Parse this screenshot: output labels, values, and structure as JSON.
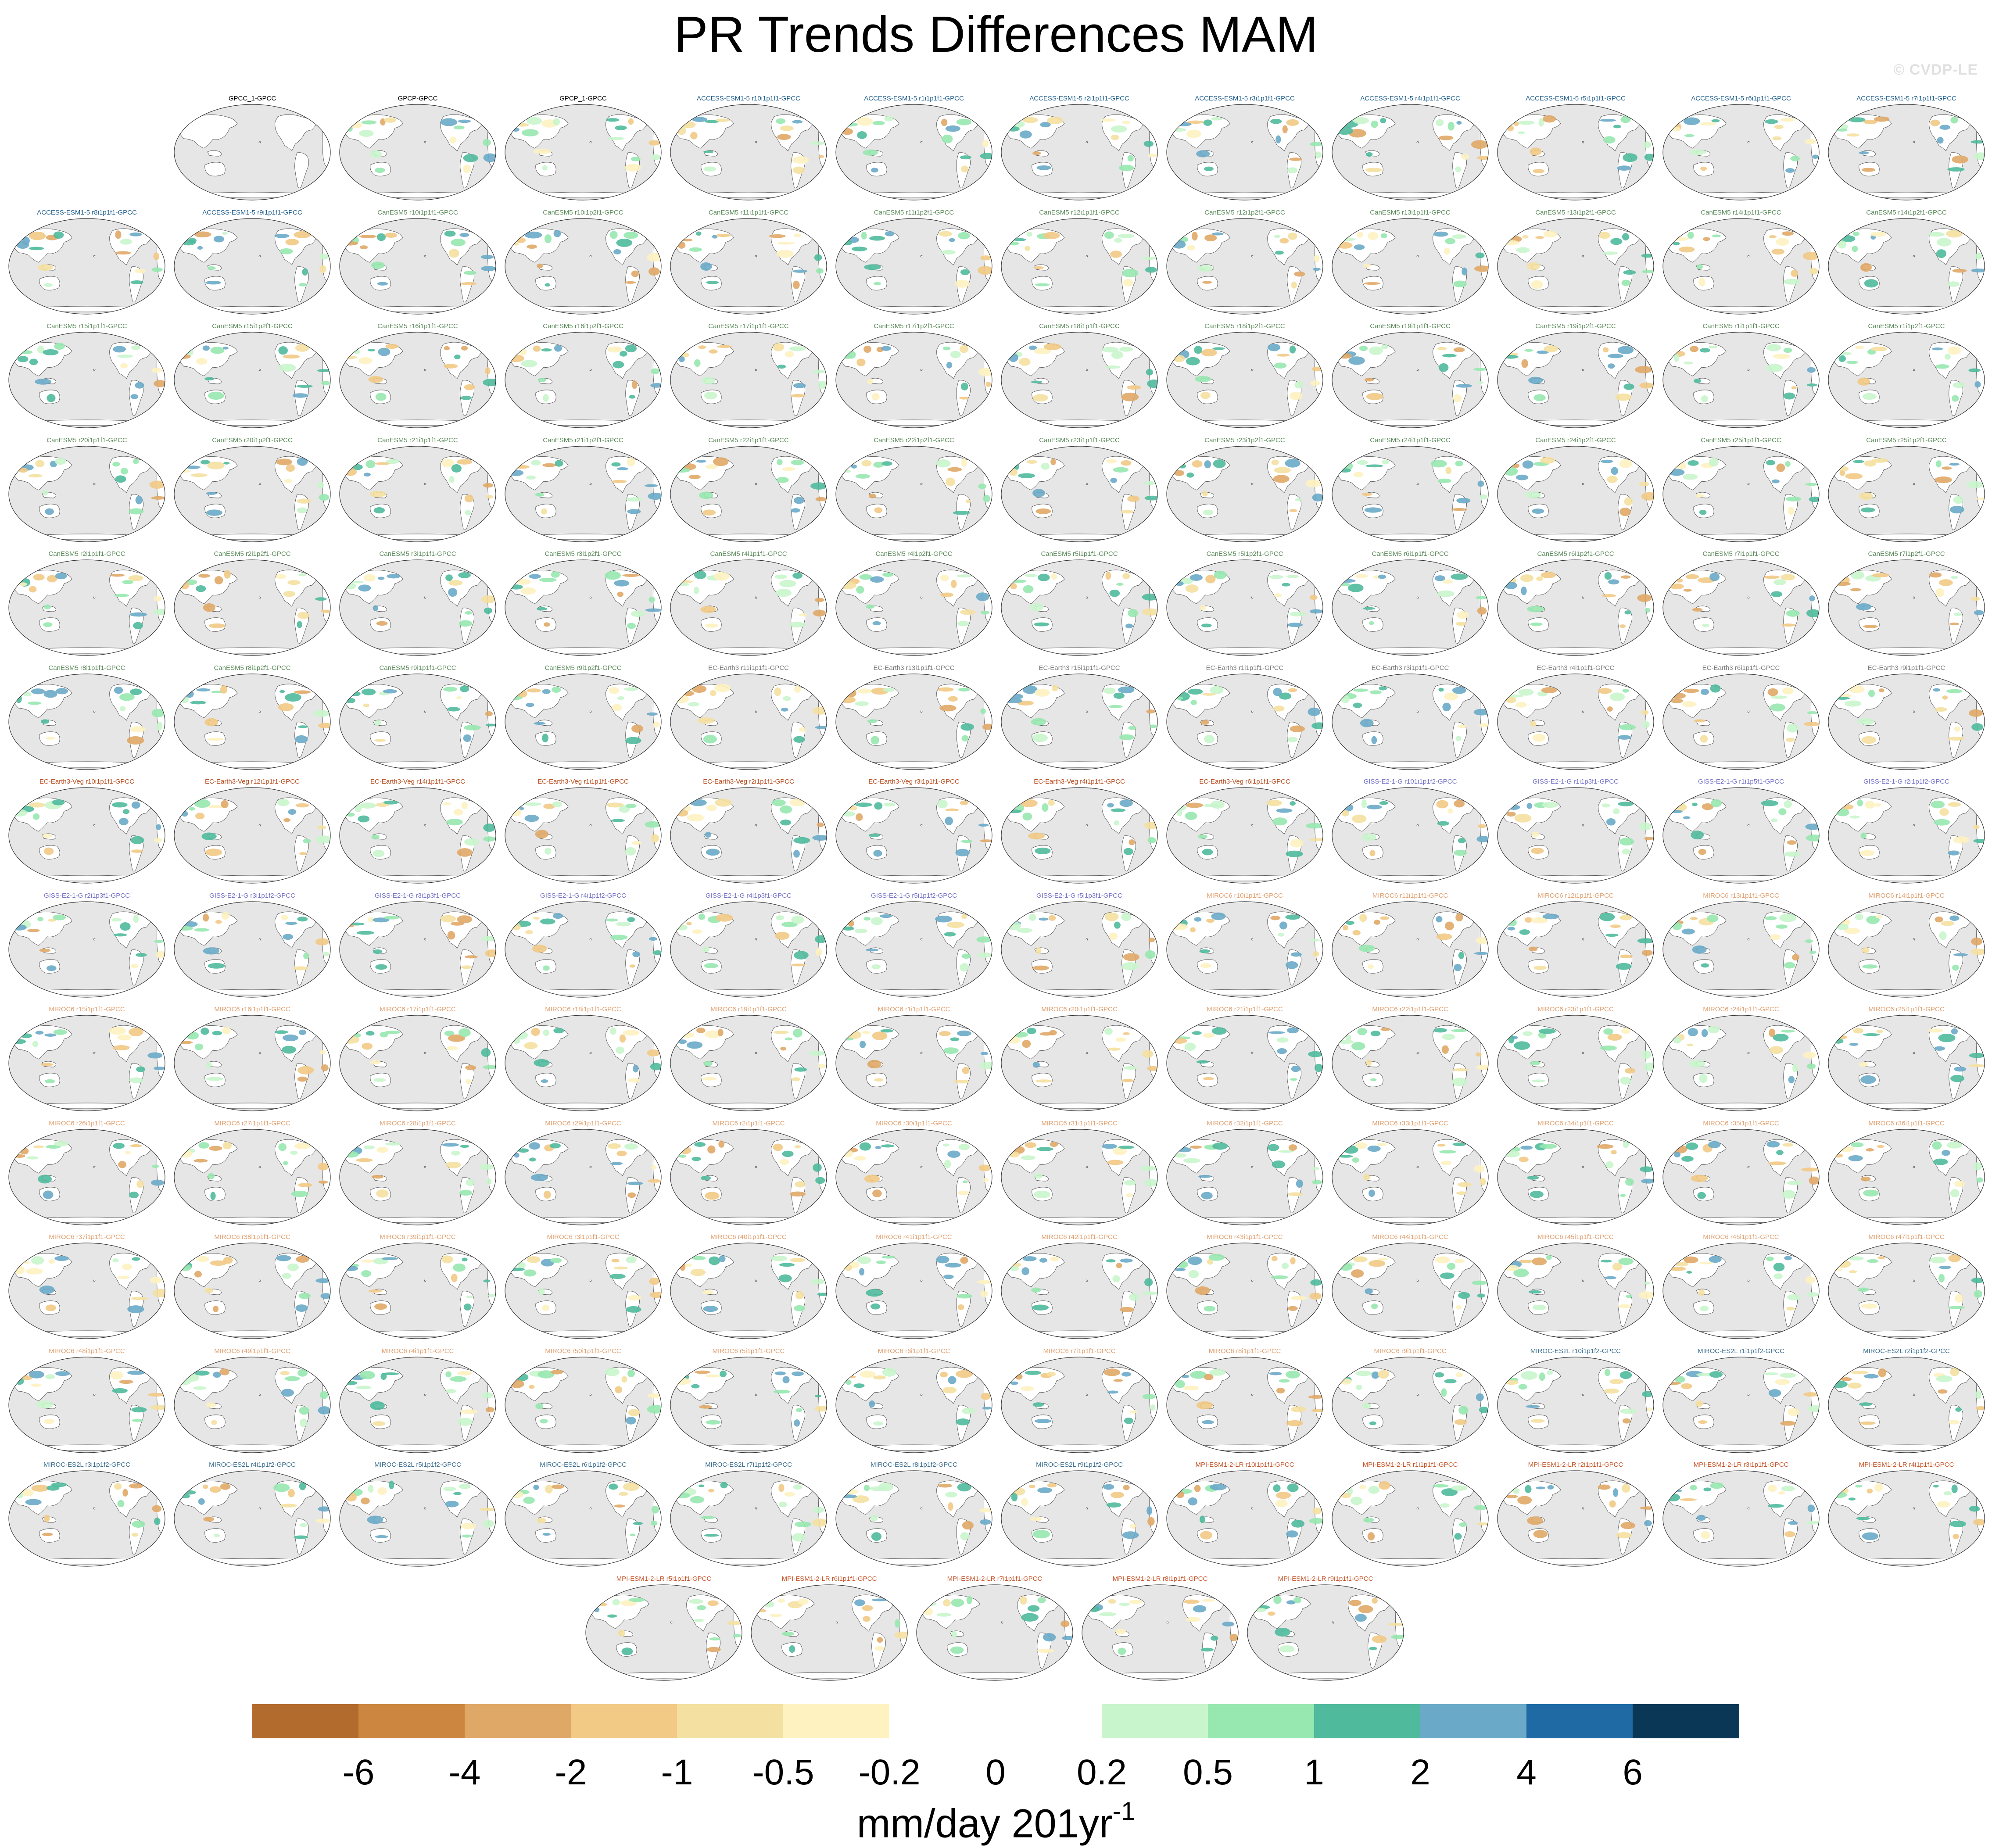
{
  "title": "PR Trends Differences MAM",
  "watermark": "© CVDP-LE",
  "colors": {
    "map_background": "#e6e6e6",
    "land_outline": "#555555",
    "colorbar": [
      "#b36a2d",
      "#cc863f",
      "#e0a867",
      "#f2c985",
      "#f4e0a0",
      "#fdf2c0",
      "#ffffff",
      "#ffffff",
      "#c8f5cc",
      "#97e8b0",
      "#4fba9c",
      "#6aaac8",
      "#1f6aa5",
      "#0b3756"
    ],
    "series_label_colors": {
      "obs": "#000000",
      "ACCESS-ESM1-5": "#1e5d8c",
      "CanESM5": "#5a8a5a",
      "EC-Earth3": "#7a7a7a",
      "EC-Earth3-Veg": "#b84a1c",
      "GISS-E2-1-G": "#7070c8",
      "MIROC6": "#e0a070",
      "MIROC-ES2L": "#3d6f8f",
      "MPI-ESM1-2-LR": "#c8552a"
    }
  },
  "colorbar": {
    "ticks": [
      "-6",
      "-4",
      "-2",
      "-1",
      "-0.5",
      "-0.2",
      "0",
      "0.2",
      "0.5",
      "1",
      "2",
      "4",
      "6"
    ],
    "unit_base": "mm/day 201yr",
    "unit_exp": "-1"
  },
  "map_icon": "robinson-world-map-icon",
  "panels": [
    {
      "label": "GPCC_1-GPCC",
      "group": "obs"
    },
    {
      "label": "GPCP-GPCC",
      "group": "obs"
    },
    {
      "label": "GPCP_1-GPCC",
      "group": "obs"
    },
    {
      "label": "ACCESS-ESM1-5 r10i1p1f1-GPCC",
      "group": "ACCESS-ESM1-5"
    },
    {
      "label": "ACCESS-ESM1-5 r1i1p1f1-GPCC",
      "group": "ACCESS-ESM1-5"
    },
    {
      "label": "ACCESS-ESM1-5 r2i1p1f1-GPCC",
      "group": "ACCESS-ESM1-5"
    },
    {
      "label": "ACCESS-ESM1-5 r3i1p1f1-GPCC",
      "group": "ACCESS-ESM1-5"
    },
    {
      "label": "ACCESS-ESM1-5 r4i1p1f1-GPCC",
      "group": "ACCESS-ESM1-5"
    },
    {
      "label": "ACCESS-ESM1-5 r5i1p1f1-GPCC",
      "group": "ACCESS-ESM1-5"
    },
    {
      "label": "ACCESS-ESM1-5 r6i1p1f1-GPCC",
      "group": "ACCESS-ESM1-5"
    },
    {
      "label": "ACCESS-ESM1-5 r7i1p1f1-GPCC",
      "group": "ACCESS-ESM1-5"
    },
    {
      "label": "ACCESS-ESM1-5 r8i1p1f1-GPCC",
      "group": "ACCESS-ESM1-5"
    },
    {
      "label": "ACCESS-ESM1-5 r9i1p1f1-GPCC",
      "group": "ACCESS-ESM1-5"
    },
    {
      "label": "CanESM5 r10i1p1f1-GPCC",
      "group": "CanESM5"
    },
    {
      "label": "CanESM5 r10i1p2f1-GPCC",
      "group": "CanESM5"
    },
    {
      "label": "CanESM5 r11i1p1f1-GPCC",
      "group": "CanESM5"
    },
    {
      "label": "CanESM5 r11i1p2f1-GPCC",
      "group": "CanESM5"
    },
    {
      "label": "CanESM5 r12i1p1f1-GPCC",
      "group": "CanESM5"
    },
    {
      "label": "CanESM5 r12i1p2f1-GPCC",
      "group": "CanESM5"
    },
    {
      "label": "CanESM5 r13i1p1f1-GPCC",
      "group": "CanESM5"
    },
    {
      "label": "CanESM5 r13i1p2f1-GPCC",
      "group": "CanESM5"
    },
    {
      "label": "CanESM5 r14i1p1f1-GPCC",
      "group": "CanESM5"
    },
    {
      "label": "CanESM5 r14i1p2f1-GPCC",
      "group": "CanESM5"
    },
    {
      "label": "CanESM5 r15i1p1f1-GPCC",
      "group": "CanESM5"
    },
    {
      "label": "CanESM5 r15i1p2f1-GPCC",
      "group": "CanESM5"
    },
    {
      "label": "CanESM5 r16i1p1f1-GPCC",
      "group": "CanESM5"
    },
    {
      "label": "CanESM5 r16i1p2f1-GPCC",
      "group": "CanESM5"
    },
    {
      "label": "CanESM5 r17i1p1f1-GPCC",
      "group": "CanESM5"
    },
    {
      "label": "CanESM5 r17i1p2f1-GPCC",
      "group": "CanESM5"
    },
    {
      "label": "CanESM5 r18i1p1f1-GPCC",
      "group": "CanESM5"
    },
    {
      "label": "CanESM5 r18i1p2f1-GPCC",
      "group": "CanESM5"
    },
    {
      "label": "CanESM5 r19i1p1f1-GPCC",
      "group": "CanESM5"
    },
    {
      "label": "CanESM5 r19i1p2f1-GPCC",
      "group": "CanESM5"
    },
    {
      "label": "CanESM5 r1i1p1f1-GPCC",
      "group": "CanESM5"
    },
    {
      "label": "CanESM5 r1i1p2f1-GPCC",
      "group": "CanESM5"
    },
    {
      "label": "CanESM5 r20i1p1f1-GPCC",
      "group": "CanESM5"
    },
    {
      "label": "CanESM5 r20i1p2f1-GPCC",
      "group": "CanESM5"
    },
    {
      "label": "CanESM5 r21i1p1f1-GPCC",
      "group": "CanESM5"
    },
    {
      "label": "CanESM5 r21i1p2f1-GPCC",
      "group": "CanESM5"
    },
    {
      "label": "CanESM5 r22i1p1f1-GPCC",
      "group": "CanESM5"
    },
    {
      "label": "CanESM5 r22i1p2f1-GPCC",
      "group": "CanESM5"
    },
    {
      "label": "CanESM5 r23i1p1f1-GPCC",
      "group": "CanESM5"
    },
    {
      "label": "CanESM5 r23i1p2f1-GPCC",
      "group": "CanESM5"
    },
    {
      "label": "CanESM5 r24i1p1f1-GPCC",
      "group": "CanESM5"
    },
    {
      "label": "CanESM5 r24i1p2f1-GPCC",
      "group": "CanESM5"
    },
    {
      "label": "CanESM5 r25i1p1f1-GPCC",
      "group": "CanESM5"
    },
    {
      "label": "CanESM5 r25i1p2f1-GPCC",
      "group": "CanESM5"
    },
    {
      "label": "CanESM5 r2i1p1f1-GPCC",
      "group": "CanESM5"
    },
    {
      "label": "CanESM5 r2i1p2f1-GPCC",
      "group": "CanESM5"
    },
    {
      "label": "CanESM5 r3i1p1f1-GPCC",
      "group": "CanESM5"
    },
    {
      "label": "CanESM5 r3i1p2f1-GPCC",
      "group": "CanESM5"
    },
    {
      "label": "CanESM5 r4i1p1f1-GPCC",
      "group": "CanESM5"
    },
    {
      "label": "CanESM5 r4i1p2f1-GPCC",
      "group": "CanESM5"
    },
    {
      "label": "CanESM5 r5i1p1f1-GPCC",
      "group": "CanESM5"
    },
    {
      "label": "CanESM5 r5i1p2f1-GPCC",
      "group": "CanESM5"
    },
    {
      "label": "CanESM5 r6i1p1f1-GPCC",
      "group": "CanESM5"
    },
    {
      "label": "CanESM5 r6i1p2f1-GPCC",
      "group": "CanESM5"
    },
    {
      "label": "CanESM5 r7i1p1f1-GPCC",
      "group": "CanESM5"
    },
    {
      "label": "CanESM5 r7i1p2f1-GPCC",
      "group": "CanESM5"
    },
    {
      "label": "CanESM5 r8i1p1f1-GPCC",
      "group": "CanESM5"
    },
    {
      "label": "CanESM5 r8i1p2f1-GPCC",
      "group": "CanESM5"
    },
    {
      "label": "CanESM5 r9i1p1f1-GPCC",
      "group": "CanESM5"
    },
    {
      "label": "CanESM5 r9i1p2f1-GPCC",
      "group": "CanESM5"
    },
    {
      "label": "EC-Earth3 r11i1p1f1-GPCC",
      "group": "EC-Earth3"
    },
    {
      "label": "EC-Earth3 r13i1p1f1-GPCC",
      "group": "EC-Earth3"
    },
    {
      "label": "EC-Earth3 r15i1p1f1-GPCC",
      "group": "EC-Earth3"
    },
    {
      "label": "EC-Earth3 r1i1p1f1-GPCC",
      "group": "EC-Earth3"
    },
    {
      "label": "EC-Earth3 r3i1p1f1-GPCC",
      "group": "EC-Earth3"
    },
    {
      "label": "EC-Earth3 r4i1p1f1-GPCC",
      "group": "EC-Earth3"
    },
    {
      "label": "EC-Earth3 r6i1p1f1-GPCC",
      "group": "EC-Earth3"
    },
    {
      "label": "EC-Earth3 r9i1p1f1-GPCC",
      "group": "EC-Earth3"
    },
    {
      "label": "EC-Earth3-Veg r10i1p1f1-GPCC",
      "group": "EC-Earth3-Veg"
    },
    {
      "label": "EC-Earth3-Veg r12i1p1f1-GPCC",
      "group": "EC-Earth3-Veg"
    },
    {
      "label": "EC-Earth3-Veg r14i1p1f1-GPCC",
      "group": "EC-Earth3-Veg"
    },
    {
      "label": "EC-Earth3-Veg r1i1p1f1-GPCC",
      "group": "EC-Earth3-Veg"
    },
    {
      "label": "EC-Earth3-Veg r2i1p1f1-GPCC",
      "group": "EC-Earth3-Veg"
    },
    {
      "label": "EC-Earth3-Veg r3i1p1f1-GPCC",
      "group": "EC-Earth3-Veg"
    },
    {
      "label": "EC-Earth3-Veg r4i1p1f1-GPCC",
      "group": "EC-Earth3-Veg"
    },
    {
      "label": "EC-Earth3-Veg r6i1p1f1-GPCC",
      "group": "EC-Earth3-Veg"
    },
    {
      "label": "GISS-E2-1-G r101i1p1f2-GPCC",
      "group": "GISS-E2-1-G"
    },
    {
      "label": "GISS-E2-1-G r1i1p3f1-GPCC",
      "group": "GISS-E2-1-G"
    },
    {
      "label": "GISS-E2-1-G r1i1p5f1-GPCC",
      "group": "GISS-E2-1-G"
    },
    {
      "label": "GISS-E2-1-G r2i1p1f2-GPCC",
      "group": "GISS-E2-1-G"
    },
    {
      "label": "GISS-E2-1-G r2i1p3f1-GPCC",
      "group": "GISS-E2-1-G"
    },
    {
      "label": "GISS-E2-1-G r3i1p1f2-GPCC",
      "group": "GISS-E2-1-G"
    },
    {
      "label": "GISS-E2-1-G r3i1p3f1-GPCC",
      "group": "GISS-E2-1-G"
    },
    {
      "label": "GISS-E2-1-G r4i1p1f2-GPCC",
      "group": "GISS-E2-1-G"
    },
    {
      "label": "GISS-E2-1-G r4i1p3f1-GPCC",
      "group": "GISS-E2-1-G"
    },
    {
      "label": "GISS-E2-1-G r5i1p1f2-GPCC",
      "group": "GISS-E2-1-G"
    },
    {
      "label": "GISS-E2-1-G r5i1p3f1-GPCC",
      "group": "GISS-E2-1-G"
    },
    {
      "label": "MIROC6 r10i1p1f1-GPCC",
      "group": "MIROC6"
    },
    {
      "label": "MIROC6 r11i1p1f1-GPCC",
      "group": "MIROC6"
    },
    {
      "label": "MIROC6 r12i1p1f1-GPCC",
      "group": "MIROC6"
    },
    {
      "label": "MIROC6 r13i1p1f1-GPCC",
      "group": "MIROC6"
    },
    {
      "label": "MIROC6 r14i1p1f1-GPCC",
      "group": "MIROC6"
    },
    {
      "label": "MIROC6 r15i1p1f1-GPCC",
      "group": "MIROC6"
    },
    {
      "label": "MIROC6 r16i1p1f1-GPCC",
      "group": "MIROC6"
    },
    {
      "label": "MIROC6 r17i1p1f1-GPCC",
      "group": "MIROC6"
    },
    {
      "label": "MIROC6 r18i1p1f1-GPCC",
      "group": "MIROC6"
    },
    {
      "label": "MIROC6 r19i1p1f1-GPCC",
      "group": "MIROC6"
    },
    {
      "label": "MIROC6 r1i1p1f1-GPCC",
      "group": "MIROC6"
    },
    {
      "label": "MIROC6 r20i1p1f1-GPCC",
      "group": "MIROC6"
    },
    {
      "label": "MIROC6 r21i1p1f1-GPCC",
      "group": "MIROC6"
    },
    {
      "label": "MIROC6 r22i1p1f1-GPCC",
      "group": "MIROC6"
    },
    {
      "label": "MIROC6 r23i1p1f1-GPCC",
      "group": "MIROC6"
    },
    {
      "label": "MIROC6 r24i1p1f1-GPCC",
      "group": "MIROC6"
    },
    {
      "label": "MIROC6 r25i1p1f1-GPCC",
      "group": "MIROC6"
    },
    {
      "label": "MIROC6 r26i1p1f1-GPCC",
      "group": "MIROC6"
    },
    {
      "label": "MIROC6 r27i1p1f1-GPCC",
      "group": "MIROC6"
    },
    {
      "label": "MIROC6 r28i1p1f1-GPCC",
      "group": "MIROC6"
    },
    {
      "label": "MIROC6 r29i1p1f1-GPCC",
      "group": "MIROC6"
    },
    {
      "label": "MIROC6 r2i1p1f1-GPCC",
      "group": "MIROC6"
    },
    {
      "label": "MIROC6 r30i1p1f1-GPCC",
      "group": "MIROC6"
    },
    {
      "label": "MIROC6 r31i1p1f1-GPCC",
      "group": "MIROC6"
    },
    {
      "label": "MIROC6 r32i1p1f1-GPCC",
      "group": "MIROC6"
    },
    {
      "label": "MIROC6 r33i1p1f1-GPCC",
      "group": "MIROC6"
    },
    {
      "label": "MIROC6 r34i1p1f1-GPCC",
      "group": "MIROC6"
    },
    {
      "label": "MIROC6 r35i1p1f1-GPCC",
      "group": "MIROC6"
    },
    {
      "label": "MIROC6 r36i1p1f1-GPCC",
      "group": "MIROC6"
    },
    {
      "label": "MIROC6 r37i1p1f1-GPCC",
      "group": "MIROC6"
    },
    {
      "label": "MIROC6 r38i1p1f1-GPCC",
      "group": "MIROC6"
    },
    {
      "label": "MIROC6 r39i1p1f1-GPCC",
      "group": "MIROC6"
    },
    {
      "label": "MIROC6 r3i1p1f1-GPCC",
      "group": "MIROC6"
    },
    {
      "label": "MIROC6 r40i1p1f1-GPCC",
      "group": "MIROC6"
    },
    {
      "label": "MIROC6 r41i1p1f1-GPCC",
      "group": "MIROC6"
    },
    {
      "label": "MIROC6 r42i1p1f1-GPCC",
      "group": "MIROC6"
    },
    {
      "label": "MIROC6 r43i1p1f1-GPCC",
      "group": "MIROC6"
    },
    {
      "label": "MIROC6 r44i1p1f1-GPCC",
      "group": "MIROC6"
    },
    {
      "label": "MIROC6 r45i1p1f1-GPCC",
      "group": "MIROC6"
    },
    {
      "label": "MIROC6 r46i1p1f1-GPCC",
      "group": "MIROC6"
    },
    {
      "label": "MIROC6 r47i1p1f1-GPCC",
      "group": "MIROC6"
    },
    {
      "label": "MIROC6 r48i1p1f1-GPCC",
      "group": "MIROC6"
    },
    {
      "label": "MIROC6 r49i1p1f1-GPCC",
      "group": "MIROC6"
    },
    {
      "label": "MIROC6 r4i1p1f1-GPCC",
      "group": "MIROC6"
    },
    {
      "label": "MIROC6 r50i1p1f1-GPCC",
      "group": "MIROC6"
    },
    {
      "label": "MIROC6 r5i1p1f1-GPCC",
      "group": "MIROC6"
    },
    {
      "label": "MIROC6 r6i1p1f1-GPCC",
      "group": "MIROC6"
    },
    {
      "label": "MIROC6 r7i1p1f1-GPCC",
      "group": "MIROC6"
    },
    {
      "label": "MIROC6 r8i1p1f1-GPCC",
      "group": "MIROC6"
    },
    {
      "label": "MIROC6 r9i1p1f1-GPCC",
      "group": "MIROC6"
    },
    {
      "label": "MIROC-ES2L r10i1p1f2-GPCC",
      "group": "MIROC-ES2L"
    },
    {
      "label": "MIROC-ES2L r1i1p1f2-GPCC",
      "group": "MIROC-ES2L"
    },
    {
      "label": "MIROC-ES2L r2i1p1f2-GPCC",
      "group": "MIROC-ES2L"
    },
    {
      "label": "MIROC-ES2L r3i1p1f2-GPCC",
      "group": "MIROC-ES2L"
    },
    {
      "label": "MIROC-ES2L r4i1p1f2-GPCC",
      "group": "MIROC-ES2L"
    },
    {
      "label": "MIROC-ES2L r5i1p1f2-GPCC",
      "group": "MIROC-ES2L"
    },
    {
      "label": "MIROC-ES2L r6i1p1f2-GPCC",
      "group": "MIROC-ES2L"
    },
    {
      "label": "MIROC-ES2L r7i1p1f2-GPCC",
      "group": "MIROC-ES2L"
    },
    {
      "label": "MIROC-ES2L r8i1p1f2-GPCC",
      "group": "MIROC-ES2L"
    },
    {
      "label": "MIROC-ES2L r9i1p1f2-GPCC",
      "group": "MIROC-ES2L"
    },
    {
      "label": "MPI-ESM1-2-LR r10i1p1f1-GPCC",
      "group": "MPI-ESM1-2-LR"
    },
    {
      "label": "MPI-ESM1-2-LR r1i1p1f1-GPCC",
      "group": "MPI-ESM1-2-LR"
    },
    {
      "label": "MPI-ESM1-2-LR r2i1p1f1-GPCC",
      "group": "MPI-ESM1-2-LR"
    },
    {
      "label": "MPI-ESM1-2-LR r3i1p1f1-GPCC",
      "group": "MPI-ESM1-2-LR"
    },
    {
      "label": "MPI-ESM1-2-LR r4i1p1f1-GPCC",
      "group": "MPI-ESM1-2-LR"
    },
    {
      "label": "MPI-ESM1-2-LR r5i1p1f1-GPCC",
      "group": "MPI-ESM1-2-LR"
    },
    {
      "label": "MPI-ESM1-2-LR r6i1p1f1-GPCC",
      "group": "MPI-ESM1-2-LR"
    },
    {
      "label": "MPI-ESM1-2-LR r7i1p1f1-GPCC",
      "group": "MPI-ESM1-2-LR"
    },
    {
      "label": "MPI-ESM1-2-LR r8i1p1f1-GPCC",
      "group": "MPI-ESM1-2-LR"
    },
    {
      "label": "MPI-ESM1-2-LR r9i1p1f1-GPCC",
      "group": "MPI-ESM1-2-LR"
    }
  ]
}
